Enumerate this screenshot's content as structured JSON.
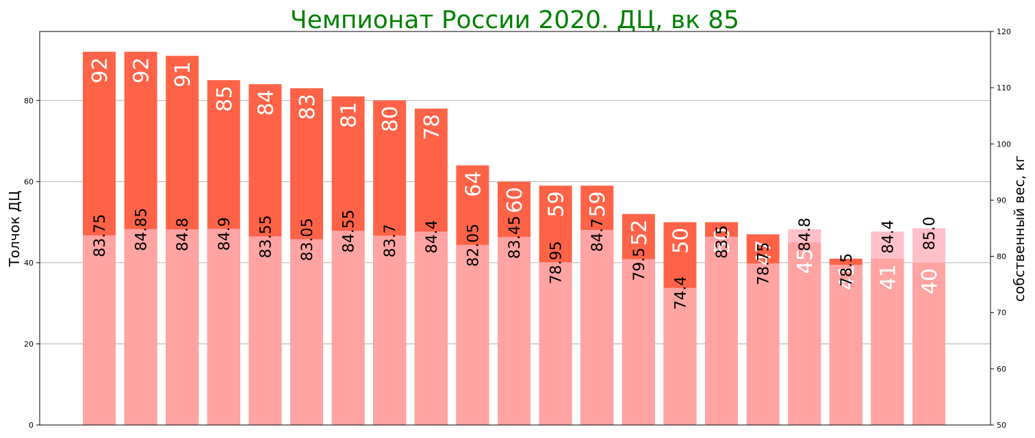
{
  "chart_data": {
    "type": "bar",
    "title": "Чемпионат России 2020. ДЦ, вк 85",
    "ylabel": "Толчок ДЦ",
    "y2label": "собственный вес, кг",
    "ylim": [
      0,
      97
    ],
    "y2lim": [
      50,
      120
    ],
    "yticks": [
      0,
      20,
      40,
      60,
      80
    ],
    "y2ticks": [
      50,
      60,
      70,
      80,
      90,
      100,
      110,
      120
    ],
    "grid": true,
    "series": [
      {
        "values": [
          92,
          92,
          91,
          85,
          84,
          83,
          81,
          80,
          78,
          64,
          60,
          59,
          59,
          52,
          50,
          50,
          47,
          45,
          41,
          41,
          40
        ],
        "labels": [
          "92",
          "92",
          "91",
          "85",
          "84",
          "83",
          "81",
          "80",
          "78",
          "64",
          "60",
          "59",
          "59",
          "52",
          "50",
          "50",
          "47",
          "45",
          "41",
          "41",
          "40"
        ]
      },
      {
        "axis": "right",
        "values": [
          83.75,
          84.85,
          84.8,
          84.9,
          83.55,
          83.05,
          84.55,
          83.7,
          84.4,
          82.05,
          83.45,
          78.95,
          84.7,
          79.5,
          74.4,
          83.5,
          78.75,
          84.8,
          78.5,
          84.4,
          85.0
        ],
        "labels": [
          "83.75",
          "84.85",
          "84.8",
          "84.9",
          "83.55",
          "83.05",
          "84.55",
          "83.7",
          "84.4",
          "82.05",
          "83.45",
          "78.95",
          "84.7",
          "79.5",
          "74.4",
          "83.5",
          "78.75",
          "84.8",
          "78.5",
          "84.4",
          "85.0"
        ]
      }
    ],
    "colors": {
      "lift_bar": "#ff6347",
      "weight_bar": "#ffa3a3",
      "top_overlay": "#ffc0cb",
      "title": "#008000",
      "grid": "#b0b0b0"
    }
  }
}
